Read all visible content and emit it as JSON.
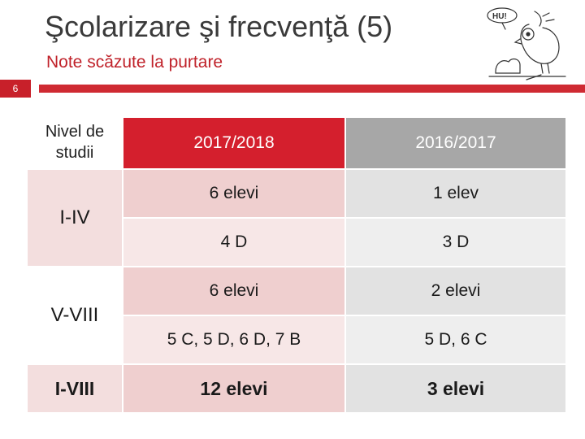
{
  "slide": {
    "title": "Şcolarizare şi frecvenţă (5)",
    "subtitle": "Note scăzute la purtare",
    "page_number": "6"
  },
  "logo": {
    "text": "HU!",
    "icon": "cartoon-bird-icon"
  },
  "table": {
    "header": {
      "level": "Nivel de studii",
      "col1": "2017/2018",
      "col2": "2016/2017"
    },
    "groups": [
      {
        "level": "I-IV",
        "count_2017": "6 elevi",
        "count_2016": "1 elev",
        "classes_2017": "4 D",
        "classes_2016": "3 D"
      },
      {
        "level": "V-VIII",
        "count_2017": "6 elevi",
        "count_2016": "2 elevi",
        "classes_2017": "5 C, 5 D, 6 D, 7 B",
        "classes_2016": "5 D, 6 C"
      }
    ],
    "total": {
      "level": "I-VIII",
      "count_2017": "12 elevi",
      "count_2016": "3 elevi"
    }
  },
  "colors": {
    "accent_red": "#d41f2d",
    "header_gray": "#a7a7a7",
    "title_text": "#3a3a3a",
    "subtitle_red": "#c0222a"
  }
}
